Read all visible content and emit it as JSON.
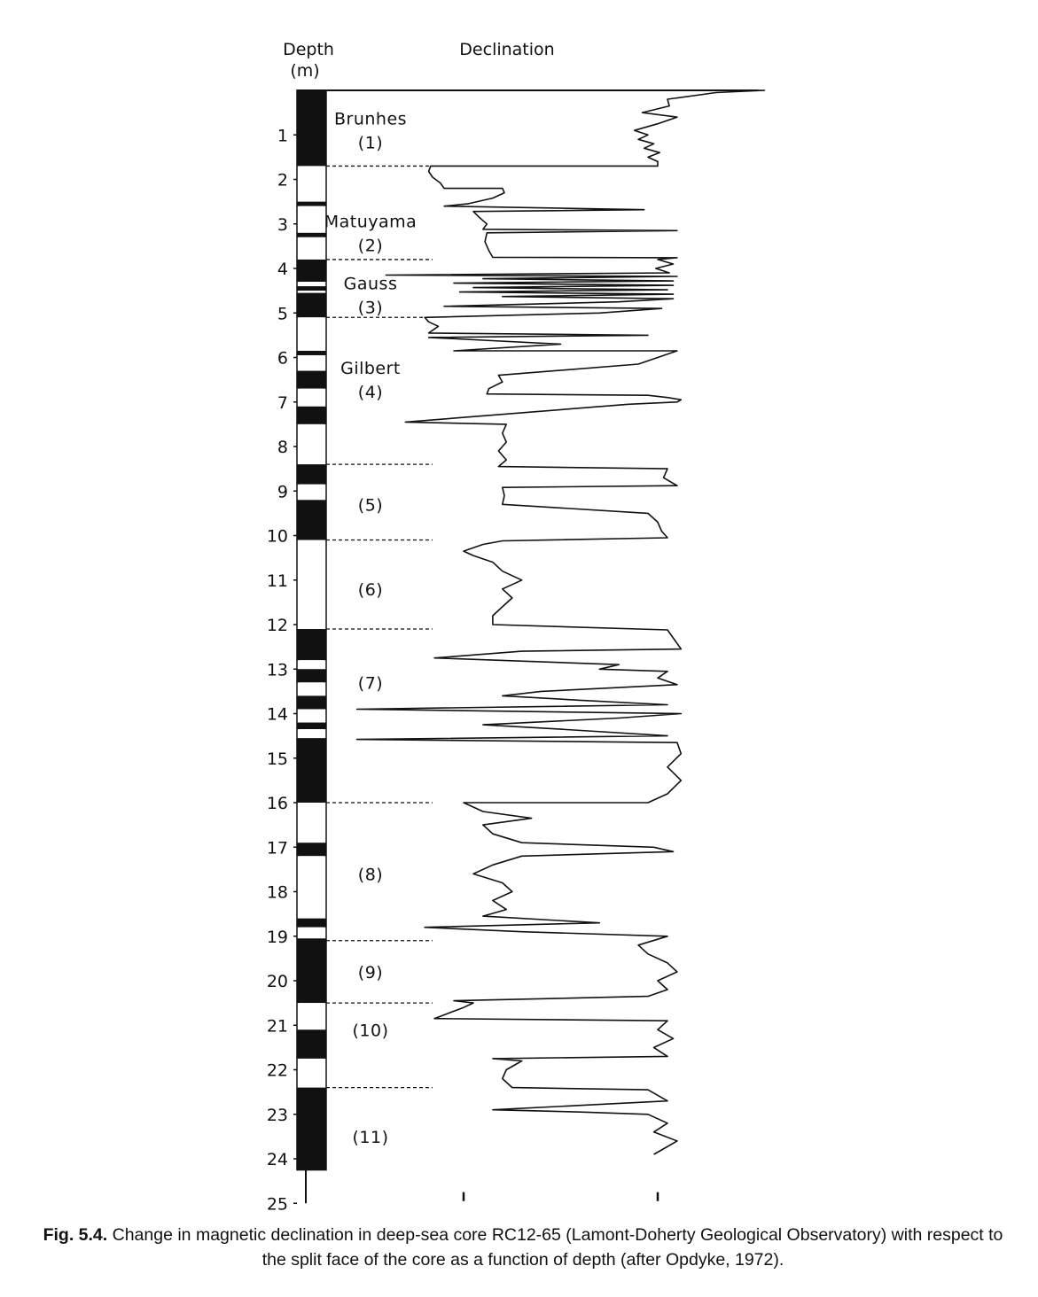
{
  "chart_data": {
    "type": "line",
    "orientation": "vertical-depth",
    "headers": {
      "depth": "Depth",
      "depth_unit": "(m)",
      "declination": "Declination"
    },
    "depth_axis": {
      "ylim": [
        0,
        25
      ],
      "ticks": [
        1,
        2,
        3,
        4,
        5,
        6,
        7,
        8,
        9,
        10,
        11,
        12,
        13,
        14,
        15,
        16,
        17,
        18,
        19,
        20,
        21,
        22,
        23,
        24,
        25
      ]
    },
    "zones": [
      {
        "lines": [
          "Brunhes",
          "(1)"
        ],
        "depth": 0.9
      },
      {
        "lines": [
          "Matuyama",
          "(2)"
        ],
        "depth": 3.2
      },
      {
        "lines": [
          "Gauss",
          "(3)"
        ],
        "depth": 4.6
      },
      {
        "lines": [
          "Gilbert",
          "(4)"
        ],
        "depth": 6.5
      },
      {
        "lines": [
          "(5)"
        ],
        "depth": 9.3
      },
      {
        "lines": [
          "(6)"
        ],
        "depth": 11.2
      },
      {
        "lines": [
          "(7)"
        ],
        "depth": 13.3
      },
      {
        "lines": [
          "(8)"
        ],
        "depth": 17.6
      },
      {
        "lines": [
          "(9)"
        ],
        "depth": 19.8
      },
      {
        "lines": [
          "(10)"
        ],
        "depth": 21.1
      },
      {
        "lines": [
          "(11)"
        ],
        "depth": 23.5
      }
    ],
    "boundaries": [
      1.7,
      3.8,
      5.1,
      8.4,
      10.1,
      12.1,
      16.0,
      19.1,
      20.5,
      22.4
    ],
    "polarity_column": [
      {
        "from": 0.0,
        "to": 1.7,
        "polarity": "normal"
      },
      {
        "from": 1.7,
        "to": 2.5,
        "polarity": "reversed"
      },
      {
        "from": 2.5,
        "to": 2.6,
        "polarity": "normal"
      },
      {
        "from": 2.6,
        "to": 3.2,
        "polarity": "reversed"
      },
      {
        "from": 3.2,
        "to": 3.3,
        "polarity": "normal"
      },
      {
        "from": 3.3,
        "to": 3.8,
        "polarity": "reversed"
      },
      {
        "from": 3.8,
        "to": 4.3,
        "polarity": "normal"
      },
      {
        "from": 4.3,
        "to": 4.4,
        "polarity": "reversed"
      },
      {
        "from": 4.4,
        "to": 4.5,
        "polarity": "normal"
      },
      {
        "from": 4.5,
        "to": 4.55,
        "polarity": "reversed"
      },
      {
        "from": 4.55,
        "to": 5.1,
        "polarity": "normal"
      },
      {
        "from": 5.1,
        "to": 5.85,
        "polarity": "reversed"
      },
      {
        "from": 5.85,
        "to": 5.95,
        "polarity": "normal"
      },
      {
        "from": 5.95,
        "to": 6.3,
        "polarity": "reversed"
      },
      {
        "from": 6.3,
        "to": 6.7,
        "polarity": "normal"
      },
      {
        "from": 6.7,
        "to": 7.1,
        "polarity": "reversed"
      },
      {
        "from": 7.1,
        "to": 7.5,
        "polarity": "normal"
      },
      {
        "from": 7.5,
        "to": 8.4,
        "polarity": "reversed"
      },
      {
        "from": 8.4,
        "to": 8.85,
        "polarity": "normal"
      },
      {
        "from": 8.85,
        "to": 9.2,
        "polarity": "reversed"
      },
      {
        "from": 9.2,
        "to": 10.1,
        "polarity": "normal"
      },
      {
        "from": 10.1,
        "to": 12.1,
        "polarity": "reversed"
      },
      {
        "from": 12.1,
        "to": 12.8,
        "polarity": "normal"
      },
      {
        "from": 12.8,
        "to": 13.0,
        "polarity": "reversed"
      },
      {
        "from": 13.0,
        "to": 13.3,
        "polarity": "normal"
      },
      {
        "from": 13.3,
        "to": 13.6,
        "polarity": "reversed"
      },
      {
        "from": 13.6,
        "to": 13.9,
        "polarity": "normal"
      },
      {
        "from": 13.9,
        "to": 14.2,
        "polarity": "reversed"
      },
      {
        "from": 14.2,
        "to": 14.35,
        "polarity": "normal"
      },
      {
        "from": 14.35,
        "to": 14.55,
        "polarity": "reversed"
      },
      {
        "from": 14.55,
        "to": 16.0,
        "polarity": "normal"
      },
      {
        "from": 16.0,
        "to": 16.9,
        "polarity": "reversed"
      },
      {
        "from": 16.9,
        "to": 17.2,
        "polarity": "normal"
      },
      {
        "from": 17.2,
        "to": 18.6,
        "polarity": "reversed"
      },
      {
        "from": 18.6,
        "to": 18.8,
        "polarity": "normal"
      },
      {
        "from": 18.8,
        "to": 19.05,
        "polarity": "reversed"
      },
      {
        "from": 19.05,
        "to": 20.5,
        "polarity": "normal"
      },
      {
        "from": 20.5,
        "to": 21.1,
        "polarity": "reversed"
      },
      {
        "from": 21.1,
        "to": 21.75,
        "polarity": "normal"
      },
      {
        "from": 21.75,
        "to": 22.4,
        "polarity": "reversed"
      },
      {
        "from": 22.4,
        "to": 24.25,
        "polarity": "normal"
      }
    ],
    "declination_trace": {
      "x_tick_marks": 2,
      "note_units": "relative declination, 0 = left tick, 1 = right tick",
      "points": [
        [
          0.0,
          0.2
        ],
        [
          0.0,
          1.55
        ],
        [
          0.05,
          1.3
        ],
        [
          0.2,
          1.05
        ],
        [
          0.35,
          1.06
        ],
        [
          0.5,
          0.92
        ],
        [
          0.6,
          1.1
        ],
        [
          0.75,
          1.0
        ],
        [
          0.9,
          0.88
        ],
        [
          1.0,
          0.95
        ],
        [
          1.1,
          0.9
        ],
        [
          1.2,
          0.98
        ],
        [
          1.3,
          0.93
        ],
        [
          1.4,
          1.01
        ],
        [
          1.5,
          0.95
        ],
        [
          1.6,
          1.0
        ],
        [
          1.7,
          1.0
        ],
        [
          1.7,
          -0.17
        ],
        [
          1.82,
          -0.18
        ],
        [
          1.95,
          -0.16
        ],
        [
          2.08,
          -0.12
        ],
        [
          2.2,
          -0.1
        ],
        [
          2.2,
          0.2
        ],
        [
          2.3,
          0.21
        ],
        [
          2.42,
          0.15
        ],
        [
          2.55,
          0.02
        ],
        [
          2.6,
          -0.1
        ],
        [
          2.68,
          0.93
        ],
        [
          2.72,
          0.05
        ],
        [
          2.85,
          0.08
        ],
        [
          3.0,
          0.12
        ],
        [
          3.12,
          0.1
        ],
        [
          3.15,
          1.1
        ],
        [
          3.2,
          0.12
        ],
        [
          3.4,
          0.11
        ],
        [
          3.6,
          0.13
        ],
        [
          3.75,
          0.15
        ],
        [
          3.76,
          1.1
        ],
        [
          3.8,
          1.0
        ],
        [
          3.9,
          1.08
        ],
        [
          4.0,
          0.99
        ],
        [
          4.1,
          1.06
        ],
        [
          4.15,
          -0.4
        ],
        [
          4.18,
          1.1
        ],
        [
          4.23,
          0.1
        ],
        [
          4.28,
          1.08
        ],
        [
          4.33,
          -0.05
        ],
        [
          4.38,
          1.08
        ],
        [
          4.43,
          0.05
        ],
        [
          4.48,
          1.05
        ],
        [
          4.53,
          -0.02
        ],
        [
          4.58,
          1.08
        ],
        [
          4.63,
          0.2
        ],
        [
          4.68,
          1.08
        ],
        [
          4.75,
          0.8
        ],
        [
          4.85,
          -0.1
        ],
        [
          4.9,
          1.02
        ],
        [
          5.0,
          0.7
        ],
        [
          5.1,
          -0.2
        ],
        [
          5.2,
          -0.18
        ],
        [
          5.3,
          -0.13
        ],
        [
          5.45,
          -0.18
        ],
        [
          5.5,
          0.95
        ],
        [
          5.55,
          -0.18
        ],
        [
          5.7,
          0.5
        ],
        [
          5.85,
          -0.05
        ],
        [
          5.85,
          1.1
        ],
        [
          6.0,
          1.0
        ],
        [
          6.15,
          0.9
        ],
        [
          6.4,
          0.18
        ],
        [
          6.55,
          0.2
        ],
        [
          6.7,
          0.13
        ],
        [
          6.82,
          0.12
        ],
        [
          6.85,
          0.95
        ],
        [
          6.9,
          1.05
        ],
        [
          6.95,
          1.12
        ],
        [
          7.0,
          1.1
        ],
        [
          7.05,
          0.85
        ],
        [
          7.45,
          -0.3
        ],
        [
          7.5,
          0.22
        ],
        [
          7.7,
          0.2
        ],
        [
          7.9,
          0.22
        ],
        [
          8.1,
          0.18
        ],
        [
          8.3,
          0.22
        ],
        [
          8.45,
          0.18
        ],
        [
          8.5,
          1.05
        ],
        [
          8.7,
          1.03
        ],
        [
          8.88,
          1.1
        ],
        [
          8.92,
          0.2
        ],
        [
          9.1,
          0.21
        ],
        [
          9.3,
          0.2
        ],
        [
          9.5,
          0.95
        ],
        [
          9.7,
          1.0
        ],
        [
          9.9,
          1.02
        ],
        [
          10.05,
          1.05
        ],
        [
          10.12,
          0.2
        ],
        [
          10.2,
          0.1
        ],
        [
          10.35,
          0.0
        ],
        [
          10.45,
          0.05
        ],
        [
          10.6,
          0.15
        ],
        [
          10.8,
          0.2
        ],
        [
          11.0,
          0.3
        ],
        [
          11.2,
          0.2
        ],
        [
          11.4,
          0.25
        ],
        [
          11.6,
          0.2
        ],
        [
          11.8,
          0.15
        ],
        [
          12.0,
          0.15
        ],
        [
          12.12,
          1.05
        ],
        [
          12.3,
          1.08
        ],
        [
          12.55,
          1.12
        ],
        [
          12.6,
          0.3
        ],
        [
          12.75,
          -0.15
        ],
        [
          12.9,
          0.8
        ],
        [
          13.0,
          0.7
        ],
        [
          13.05,
          1.05
        ],
        [
          13.2,
          1.0
        ],
        [
          13.35,
          1.1
        ],
        [
          13.5,
          0.4
        ],
        [
          13.6,
          0.2
        ],
        [
          13.7,
          0.6
        ],
        [
          13.8,
          1.05
        ],
        [
          13.9,
          -0.55
        ],
        [
          14.0,
          1.12
        ],
        [
          14.1,
          0.8
        ],
        [
          14.25,
          0.1
        ],
        [
          14.35,
          0.5
        ],
        [
          14.5,
          1.05
        ],
        [
          14.58,
          -0.55
        ],
        [
          14.65,
          1.1
        ],
        [
          14.9,
          1.12
        ],
        [
          15.2,
          1.05
        ],
        [
          15.5,
          1.12
        ],
        [
          15.8,
          1.05
        ],
        [
          16.0,
          0.95
        ],
        [
          16.0,
          0.0
        ],
        [
          16.2,
          0.1
        ],
        [
          16.35,
          0.35
        ],
        [
          16.5,
          0.1
        ],
        [
          16.7,
          0.15
        ],
        [
          16.9,
          0.3
        ],
        [
          17.0,
          0.98
        ],
        [
          17.1,
          1.08
        ],
        [
          17.2,
          0.3
        ],
        [
          17.4,
          0.15
        ],
        [
          17.6,
          0.05
        ],
        [
          17.8,
          0.2
        ],
        [
          18.0,
          0.25
        ],
        [
          18.2,
          0.15
        ],
        [
          18.4,
          0.22
        ],
        [
          18.55,
          0.1
        ],
        [
          18.7,
          0.7
        ],
        [
          18.8,
          -0.2
        ],
        [
          18.9,
          0.3
        ],
        [
          19.0,
          1.05
        ],
        [
          19.2,
          0.9
        ],
        [
          19.4,
          0.95
        ],
        [
          19.6,
          1.05
        ],
        [
          19.8,
          1.1
        ],
        [
          20.0,
          1.0
        ],
        [
          20.2,
          1.05
        ],
        [
          20.35,
          0.95
        ],
        [
          20.45,
          -0.05
        ],
        [
          20.5,
          0.05
        ],
        [
          20.6,
          0.0
        ],
        [
          20.85,
          -0.15
        ],
        [
          20.9,
          1.05
        ],
        [
          21.1,
          1.0
        ],
        [
          21.3,
          1.08
        ],
        [
          21.5,
          0.98
        ],
        [
          21.7,
          1.05
        ],
        [
          21.75,
          0.15
        ],
        [
          21.8,
          0.3
        ],
        [
          22.0,
          0.22
        ],
        [
          22.2,
          0.2
        ],
        [
          22.4,
          0.25
        ],
        [
          22.45,
          0.95
        ],
        [
          22.7,
          1.05
        ],
        [
          22.9,
          0.15
        ],
        [
          22.95,
          0.6
        ],
        [
          23.0,
          0.95
        ],
        [
          23.2,
          1.05
        ],
        [
          23.4,
          0.98
        ],
        [
          23.6,
          1.1
        ],
        [
          23.8,
          1.02
        ],
        [
          23.9,
          0.98
        ]
      ]
    }
  },
  "caption": {
    "label": "Fig. 5.4.",
    "text": "Change in magnetic declination in deep-sea core RC12-65 (Lamont-Doherty Geological Observatory) with respect to the split face of the core as a function of depth (after Opdyke, 1972)."
  }
}
